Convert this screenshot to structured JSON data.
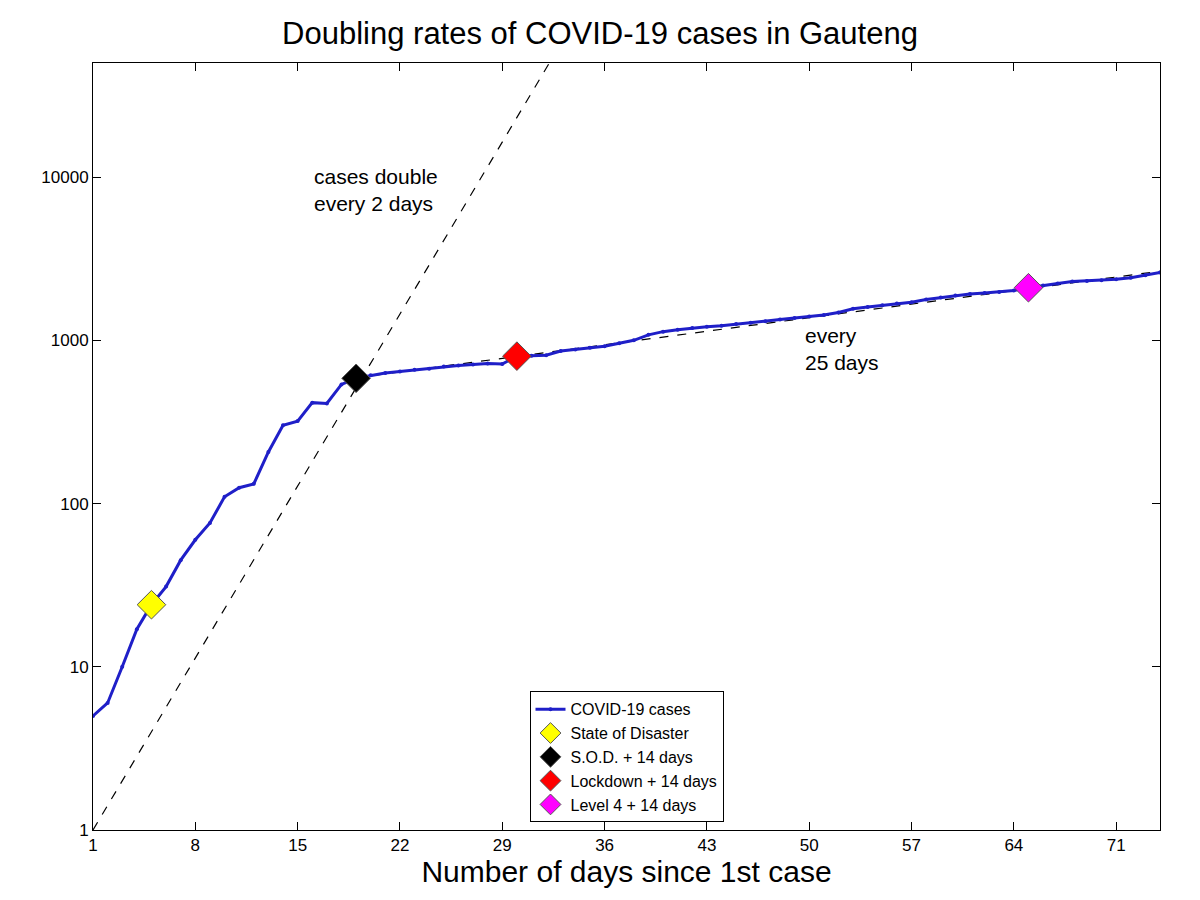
{
  "chart_data": {
    "type": "line",
    "title": "Doubling rates of COVID-19 cases in Gauteng",
    "x_label": "Number of days since 1st case",
    "log": "y",
    "grid": false,
    "legend": "bottom",
    "xlim": [
      1,
      74
    ],
    "xticks": [
      1,
      8,
      15,
      22,
      29,
      36,
      43,
      50,
      57,
      64,
      71
    ],
    "ylim": [
      1,
      50000
    ],
    "yticks": [
      1,
      10,
      100,
      1000,
      10000
    ],
    "series": [
      {
        "name": "COVID-19 cases",
        "type": "line",
        "color": "#1f1fc8",
        "marker": "circle",
        "line_style": "solid",
        "x": [
          1,
          2,
          3,
          4,
          5,
          6,
          7,
          8,
          9,
          10,
          11,
          12,
          13,
          14,
          15,
          16,
          17,
          18,
          19,
          20,
          21,
          22,
          23,
          24,
          25,
          26,
          27,
          28,
          29,
          30,
          31,
          32,
          33,
          34,
          35,
          36,
          37,
          38,
          39,
          40,
          41,
          42,
          43,
          44,
          45,
          46,
          47,
          48,
          49,
          50,
          51,
          52,
          53,
          54,
          55,
          56,
          57,
          58,
          59,
          60,
          61,
          62,
          63,
          64,
          65,
          66,
          67,
          68,
          69,
          70,
          71,
          72,
          73,
          74
        ],
        "values": [
          5,
          6,
          10,
          17,
          24,
          31,
          45,
          60,
          76,
          110,
          125,
          132,
          207,
          302,
          320,
          415,
          410,
          537,
          585,
          610,
          630,
          645,
          660,
          670,
          690,
          700,
          710,
          720,
          715,
          800,
          805,
          810,
          860,
          880,
          900,
          920,
          960,
          1000,
          1080,
          1130,
          1160,
          1190,
          1210,
          1230,
          1260,
          1280,
          1310,
          1340,
          1370,
          1400,
          1430,
          1480,
          1560,
          1600,
          1640,
          1680,
          1710,
          1780,
          1830,
          1880,
          1920,
          1950,
          1980,
          2020,
          2100,
          2170,
          2230,
          2290,
          2310,
          2330,
          2370,
          2420,
          2500,
          2600
        ]
      },
      {
        "name": "State of Disaster",
        "type": "scatter",
        "color": "#ffff00",
        "marker": "diamond",
        "x": [
          5
        ],
        "values": [
          24
        ]
      },
      {
        "name": "S.O.D. + 14 days",
        "type": "scatter",
        "color": "#000000",
        "marker": "diamond",
        "x": [
          19
        ],
        "values": [
          585
        ]
      },
      {
        "name": "Lockdown + 14 days",
        "type": "scatter",
        "color": "#ff0000",
        "marker": "diamond",
        "x": [
          30
        ],
        "values": [
          800
        ]
      },
      {
        "name": "Level 4 + 14 days",
        "type": "scatter",
        "color": "#ff00ff",
        "marker": "diamond",
        "x": [
          65
        ],
        "values": [
          2100
        ]
      }
    ],
    "reference_lines": [
      {
        "label": "cases double\nevery 2 days",
        "color": "#000000",
        "line_style": "dashed",
        "x": [
          1,
          33
        ],
        "values": [
          1,
          65536
        ]
      },
      {
        "label": "every\n25 days",
        "color": "#000000",
        "line_style": "dashed",
        "x": [
          19,
          74
        ],
        "values": [
          590,
          2650
        ]
      }
    ]
  }
}
